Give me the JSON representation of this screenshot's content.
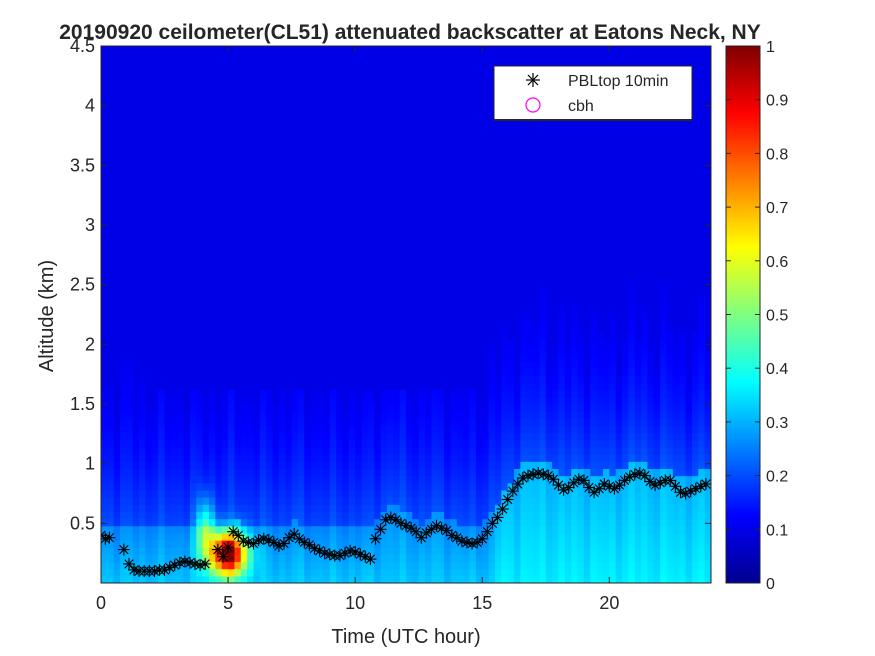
{
  "chart_data": {
    "type": "heatmap",
    "title": "20190920 ceilometer(CL51) attenuated backscatter at Eatons Neck, NY",
    "xlabel": "Time (UTC hour)",
    "ylabel": "Altitude (km)",
    "xlim": [
      0,
      24
    ],
    "ylim": [
      0,
      4.5
    ],
    "xticks": [
      0,
      5,
      10,
      15,
      20
    ],
    "yticks": [
      0.5,
      1,
      1.5,
      2,
      2.5,
      3,
      3.5,
      4,
      4.5
    ],
    "colorbar": {
      "min": 0,
      "max": 1,
      "ticks": [
        0,
        0.1,
        0.2,
        0.3,
        0.4,
        0.5,
        0.6,
        0.7,
        0.8,
        0.9,
        1
      ],
      "colormap": "jet"
    },
    "legend": {
      "position": "top-right",
      "entries": [
        {
          "label": "PBLtop 10min",
          "marker": "asterisk",
          "color": "#000000"
        },
        {
          "label": "cbh",
          "marker": "circle",
          "color": "#ff00ff"
        }
      ]
    },
    "series": [
      {
        "name": "PBLtop 10min",
        "points": [
          [
            0.0,
            0.4
          ],
          [
            0.17,
            0.37
          ],
          [
            0.33,
            0.38
          ],
          [
            0.9,
            0.28
          ],
          [
            1.1,
            0.16
          ],
          [
            1.3,
            0.11
          ],
          [
            1.5,
            0.1
          ],
          [
            1.7,
            0.1
          ],
          [
            1.9,
            0.1
          ],
          [
            2.1,
            0.1
          ],
          [
            2.3,
            0.11
          ],
          [
            2.5,
            0.11
          ],
          [
            2.7,
            0.13
          ],
          [
            2.9,
            0.15
          ],
          [
            3.1,
            0.17
          ],
          [
            3.3,
            0.18
          ],
          [
            3.5,
            0.17
          ],
          [
            3.7,
            0.16
          ],
          [
            3.9,
            0.15
          ],
          [
            4.1,
            0.16
          ],
          [
            4.6,
            0.28
          ],
          [
            4.8,
            0.22
          ],
          [
            5.0,
            0.3
          ],
          [
            5.2,
            0.43
          ],
          [
            5.4,
            0.4
          ],
          [
            5.6,
            0.35
          ],
          [
            5.8,
            0.34
          ],
          [
            6.0,
            0.33
          ],
          [
            6.2,
            0.36
          ],
          [
            6.4,
            0.37
          ],
          [
            6.6,
            0.36
          ],
          [
            6.8,
            0.34
          ],
          [
            7.0,
            0.31
          ],
          [
            7.2,
            0.33
          ],
          [
            7.4,
            0.38
          ],
          [
            7.6,
            0.41
          ],
          [
            7.8,
            0.37
          ],
          [
            8.0,
            0.34
          ],
          [
            8.2,
            0.32
          ],
          [
            8.4,
            0.29
          ],
          [
            8.6,
            0.27
          ],
          [
            8.8,
            0.25
          ],
          [
            9.0,
            0.24
          ],
          [
            9.2,
            0.23
          ],
          [
            9.4,
            0.23
          ],
          [
            9.6,
            0.25
          ],
          [
            9.8,
            0.27
          ],
          [
            10.0,
            0.26
          ],
          [
            10.2,
            0.24
          ],
          [
            10.4,
            0.22
          ],
          [
            10.6,
            0.2
          ],
          [
            10.8,
            0.37
          ],
          [
            11.0,
            0.45
          ],
          [
            11.2,
            0.53
          ],
          [
            11.4,
            0.55
          ],
          [
            11.6,
            0.53
          ],
          [
            11.8,
            0.5
          ],
          [
            12.0,
            0.48
          ],
          [
            12.2,
            0.46
          ],
          [
            12.4,
            0.43
          ],
          [
            12.6,
            0.38
          ],
          [
            12.8,
            0.42
          ],
          [
            13.0,
            0.45
          ],
          [
            13.2,
            0.48
          ],
          [
            13.4,
            0.46
          ],
          [
            13.6,
            0.44
          ],
          [
            13.8,
            0.4
          ],
          [
            14.0,
            0.38
          ],
          [
            14.2,
            0.35
          ],
          [
            14.4,
            0.34
          ],
          [
            14.6,
            0.33
          ],
          [
            14.8,
            0.34
          ],
          [
            15.0,
            0.37
          ],
          [
            15.2,
            0.43
          ],
          [
            15.4,
            0.5
          ],
          [
            15.6,
            0.55
          ],
          [
            15.8,
            0.62
          ],
          [
            16.0,
            0.7
          ],
          [
            16.2,
            0.77
          ],
          [
            16.4,
            0.83
          ],
          [
            16.6,
            0.88
          ],
          [
            16.8,
            0.9
          ],
          [
            17.0,
            0.91
          ],
          [
            17.2,
            0.92
          ],
          [
            17.4,
            0.91
          ],
          [
            17.6,
            0.9
          ],
          [
            17.8,
            0.87
          ],
          [
            18.0,
            0.82
          ],
          [
            18.2,
            0.78
          ],
          [
            18.4,
            0.8
          ],
          [
            18.6,
            0.84
          ],
          [
            18.8,
            0.87
          ],
          [
            19.0,
            0.86
          ],
          [
            19.2,
            0.8
          ],
          [
            19.4,
            0.76
          ],
          [
            19.6,
            0.79
          ],
          [
            19.8,
            0.83
          ],
          [
            20.0,
            0.81
          ],
          [
            20.2,
            0.79
          ],
          [
            20.4,
            0.82
          ],
          [
            20.6,
            0.86
          ],
          [
            20.8,
            0.89
          ],
          [
            21.0,
            0.91
          ],
          [
            21.2,
            0.92
          ],
          [
            21.4,
            0.9
          ],
          [
            21.6,
            0.85
          ],
          [
            21.8,
            0.82
          ],
          [
            22.0,
            0.84
          ],
          [
            22.2,
            0.86
          ],
          [
            22.4,
            0.86
          ],
          [
            22.6,
            0.81
          ],
          [
            22.8,
            0.76
          ],
          [
            23.0,
            0.75
          ],
          [
            23.2,
            0.77
          ],
          [
            23.4,
            0.79
          ],
          [
            23.6,
            0.81
          ],
          [
            23.8,
            0.83
          ]
        ]
      },
      {
        "name": "cbh",
        "points": []
      }
    ]
  }
}
